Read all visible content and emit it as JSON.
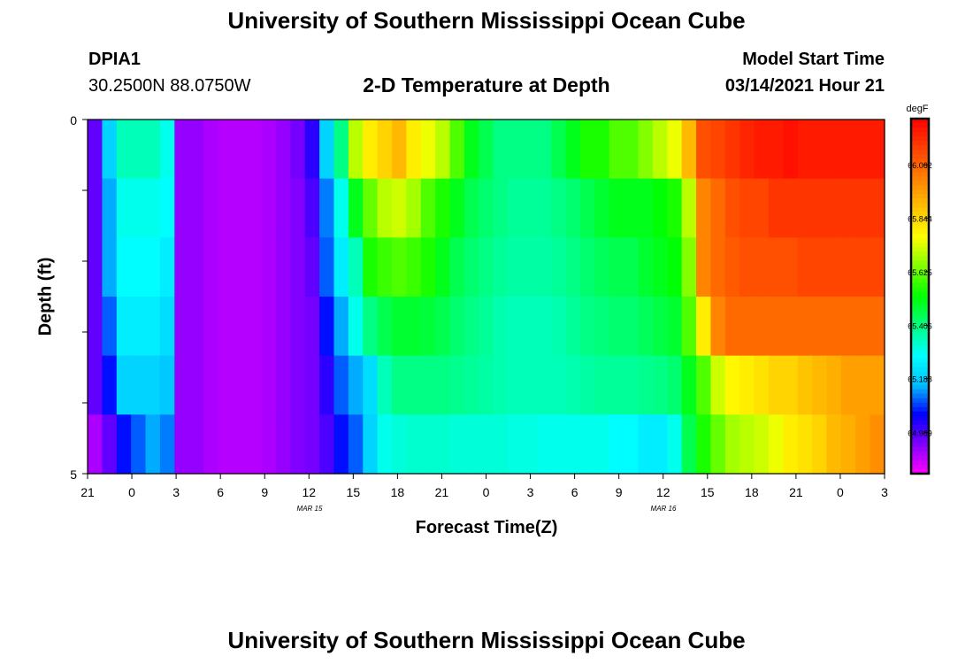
{
  "header": {
    "title": "University of Southern Mississippi Ocean Cube",
    "station": "DPIA1",
    "location": "30.2500N 88.0750W",
    "plot_title": "2-D Temperature at Depth",
    "model_start_label": "Model Start Time",
    "model_start_value": "03/14/2021 Hour 21"
  },
  "footer": {
    "title": "University of Southern Mississippi Ocean Cube"
  },
  "colorbar": {
    "unit": "degF",
    "tick_labels": [
      "66.062",
      "65.844",
      "65.625",
      "65.406",
      "65.188",
      "64.969"
    ],
    "colors": [
      "#ff00ff",
      "#8000ff",
      "#0000ff",
      "#00c0ff",
      "#00ffff",
      "#00ff80",
      "#00ff00",
      "#80ff00",
      "#ffff00",
      "#ffc000",
      "#ff8000",
      "#ff4000",
      "#ff0000"
    ]
  },
  "chart_data": {
    "type": "heatmap",
    "title": "2-D Temperature at Depth",
    "xlabel": "Forecast Time(Z)",
    "ylabel": "Depth (ft)",
    "x_tick_labels": [
      "21",
      "0",
      "3",
      "6",
      "9",
      "12",
      "15",
      "18",
      "21",
      "0",
      "3",
      "6",
      "9",
      "12",
      "15",
      "18",
      "21",
      "0",
      "3"
    ],
    "date_labels": [
      "MAR 15",
      "MAR 16"
    ],
    "y_tick_labels": [
      "0",
      "5"
    ],
    "ylim": [
      0,
      5
    ],
    "value_range": [
      64.8,
      66.25
    ],
    "x": [
      "21",
      "22",
      "23",
      "0",
      "1",
      "2",
      "3",
      "4",
      "5",
      "6",
      "7",
      "8",
      "9",
      "10",
      "11",
      "12",
      "13",
      "14",
      "15",
      "16",
      "17",
      "18",
      "19",
      "20",
      "21",
      "22",
      "23",
      "0",
      "1",
      "2",
      "3",
      "4",
      "5",
      "6",
      "7",
      "8",
      "9",
      "10",
      "11",
      "12",
      "13",
      "14",
      "15",
      "16",
      "17",
      "18",
      "19",
      "20",
      "21",
      "22",
      "23",
      "0",
      "1",
      "2",
      "3"
    ],
    "depth_levels": [
      0,
      1,
      2,
      3,
      4,
      5
    ],
    "series": [
      {
        "values": [
          64.95,
          65.2,
          65.35,
          65.35,
          65.35,
          65.3,
          64.9,
          64.9,
          64.88,
          64.87,
          64.87,
          64.87,
          64.88,
          64.9,
          64.93,
          65.0,
          65.2,
          65.4,
          65.7,
          65.8,
          65.85,
          65.9,
          65.8,
          65.75,
          65.7,
          65.6,
          65.5,
          65.45,
          65.4,
          65.4,
          65.4,
          65.4,
          65.45,
          65.5,
          65.55,
          65.55,
          65.6,
          65.6,
          65.65,
          65.7,
          65.75,
          65.9,
          66.1,
          66.12,
          66.15,
          66.18,
          66.2,
          66.2,
          66.22,
          66.2,
          66.2,
          66.2,
          66.2,
          66.2,
          66.2
        ]
      },
      {
        "values": [
          64.95,
          65.15,
          65.3,
          65.3,
          65.3,
          65.28,
          64.9,
          64.9,
          64.88,
          64.87,
          64.87,
          64.87,
          64.88,
          64.9,
          64.92,
          64.97,
          65.12,
          65.3,
          65.5,
          65.62,
          65.7,
          65.72,
          65.68,
          65.6,
          65.55,
          65.5,
          65.45,
          65.42,
          65.4,
          65.38,
          65.38,
          65.38,
          65.4,
          65.42,
          65.45,
          65.48,
          65.5,
          65.5,
          65.5,
          65.52,
          65.55,
          65.7,
          66.0,
          66.05,
          66.1,
          66.12,
          66.12,
          66.15,
          66.15,
          66.15,
          66.15,
          66.15,
          66.15,
          66.15,
          66.15
        ]
      },
      {
        "values": [
          64.95,
          65.15,
          65.28,
          65.28,
          65.28,
          65.25,
          64.9,
          64.9,
          64.88,
          64.87,
          64.87,
          64.87,
          64.88,
          64.9,
          64.92,
          64.95,
          65.1,
          65.25,
          65.35,
          65.55,
          65.58,
          65.6,
          65.58,
          65.55,
          65.5,
          65.45,
          65.42,
          65.4,
          65.38,
          65.37,
          65.37,
          65.37,
          65.38,
          65.4,
          65.42,
          65.44,
          65.45,
          65.45,
          65.48,
          65.5,
          65.52,
          65.65,
          66.0,
          66.05,
          66.08,
          66.1,
          66.1,
          66.1,
          66.1,
          66.12,
          66.12,
          66.12,
          66.12,
          66.12,
          66.12
        ]
      },
      {
        "values": [
          64.95,
          65.1,
          65.25,
          65.25,
          65.25,
          65.22,
          64.9,
          64.9,
          64.88,
          64.87,
          64.87,
          64.87,
          64.88,
          64.9,
          64.92,
          64.93,
          65.05,
          65.15,
          65.3,
          65.4,
          65.45,
          65.48,
          65.48,
          65.47,
          65.45,
          65.42,
          65.4,
          65.38,
          65.36,
          65.35,
          65.35,
          65.35,
          65.36,
          65.38,
          65.4,
          65.41,
          65.42,
          65.42,
          65.44,
          65.46,
          65.48,
          65.6,
          65.8,
          66.0,
          66.05,
          66.05,
          66.05,
          66.05,
          66.05,
          66.05,
          66.05,
          66.05,
          66.05,
          66.05,
          66.05
        ]
      },
      {
        "values": [
          64.95,
          65.05,
          65.2,
          65.2,
          65.2,
          65.18,
          64.9,
          64.9,
          64.88,
          64.87,
          64.87,
          64.87,
          64.88,
          64.9,
          64.92,
          64.93,
          65.0,
          65.1,
          65.15,
          65.22,
          65.35,
          65.4,
          65.4,
          65.4,
          65.4,
          65.39,
          65.38,
          65.37,
          65.36,
          65.35,
          65.35,
          65.35,
          65.35,
          65.36,
          65.37,
          65.38,
          65.38,
          65.38,
          65.39,
          65.4,
          65.42,
          65.5,
          65.6,
          65.72,
          65.78,
          65.8,
          65.82,
          65.85,
          65.85,
          65.88,
          65.9,
          65.92,
          65.95,
          65.95,
          65.95
        ]
      },
      {
        "values": [
          64.88,
          64.95,
          65.05,
          65.1,
          65.15,
          65.12,
          64.9,
          64.9,
          64.88,
          64.87,
          64.87,
          64.87,
          64.88,
          64.9,
          64.92,
          64.93,
          64.97,
          65.05,
          65.1,
          65.2,
          65.3,
          65.32,
          65.33,
          65.33,
          65.33,
          65.32,
          65.32,
          65.32,
          65.32,
          65.31,
          65.31,
          65.3,
          65.3,
          65.3,
          65.3,
          65.3,
          65.28,
          65.28,
          65.25,
          65.25,
          65.3,
          65.45,
          65.55,
          65.62,
          65.68,
          65.7,
          65.72,
          65.75,
          65.8,
          65.82,
          65.85,
          65.9,
          65.92,
          65.95,
          65.98
        ]
      }
    ]
  }
}
